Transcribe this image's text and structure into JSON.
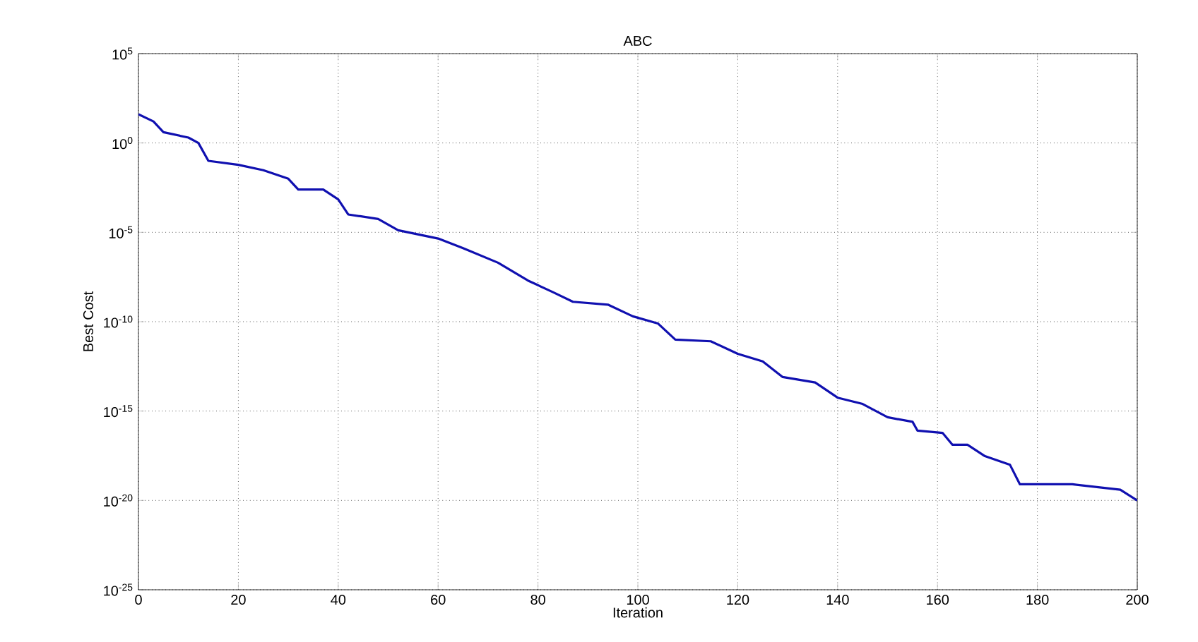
{
  "chart_data": {
    "type": "line",
    "title": "ABC",
    "xlabel": "Iteration",
    "ylabel": "Best Cost",
    "log": "y",
    "grid": true,
    "line_style": "solid",
    "xlim": [
      0,
      200
    ],
    "xticks": [
      0,
      20,
      40,
      60,
      80,
      100,
      120,
      140,
      160,
      180,
      200
    ],
    "ylim": [
      1e-25,
      100000.0
    ],
    "yticks": [
      {
        "value": 1e-25,
        "label": "10$^{-25}$"
      },
      {
        "value": 1e-20,
        "label": "10$^{-20}$"
      },
      {
        "value": 1e-15,
        "label": "10$^{-15}$"
      },
      {
        "value": 1e-10,
        "label": "10$^{-10}$"
      },
      {
        "value": 1e-05,
        "label": "10$^{-5}$"
      },
      {
        "value": 1,
        "label": "10$^{0}$"
      },
      {
        "value": 100000.0,
        "label": "10$^{5}$"
      }
    ],
    "series": [
      {
        "color": "#1010b0",
        "x": [
          0,
          3,
          5,
          10,
          12,
          14,
          20,
          25,
          30,
          32,
          37,
          40,
          42,
          48,
          52,
          60,
          65,
          72,
          78,
          83,
          87,
          94,
          99,
          104,
          107.5,
          114.6,
          120,
          125,
          129,
          135.5,
          140,
          145,
          150,
          155,
          156,
          161,
          163,
          166,
          169.5,
          174.5,
          176.5,
          187,
          196.6,
          200
        ],
        "values": [
          40,
          16,
          4,
          2,
          1,
          0.1,
          0.06,
          0.03,
          0.01,
          0.0025,
          0.0025,
          0.0007,
          0.0001,
          5.6e-05,
          1.3e-05,
          4.5e-06,
          1.3e-06,
          2e-07,
          2e-08,
          4.5e-09,
          1.3e-09,
          9e-10,
          2e-10,
          8e-11,
          1e-11,
          8e-12,
          1.6e-12,
          6e-13,
          8e-14,
          4e-14,
          5.6e-15,
          2.5e-15,
          4.5e-16,
          2.5e-16,
          8e-17,
          6e-17,
          1.3e-17,
          1.3e-17,
          3e-18,
          1e-18,
          8e-20,
          8e-20,
          4e-20,
          1e-20
        ]
      }
    ]
  }
}
